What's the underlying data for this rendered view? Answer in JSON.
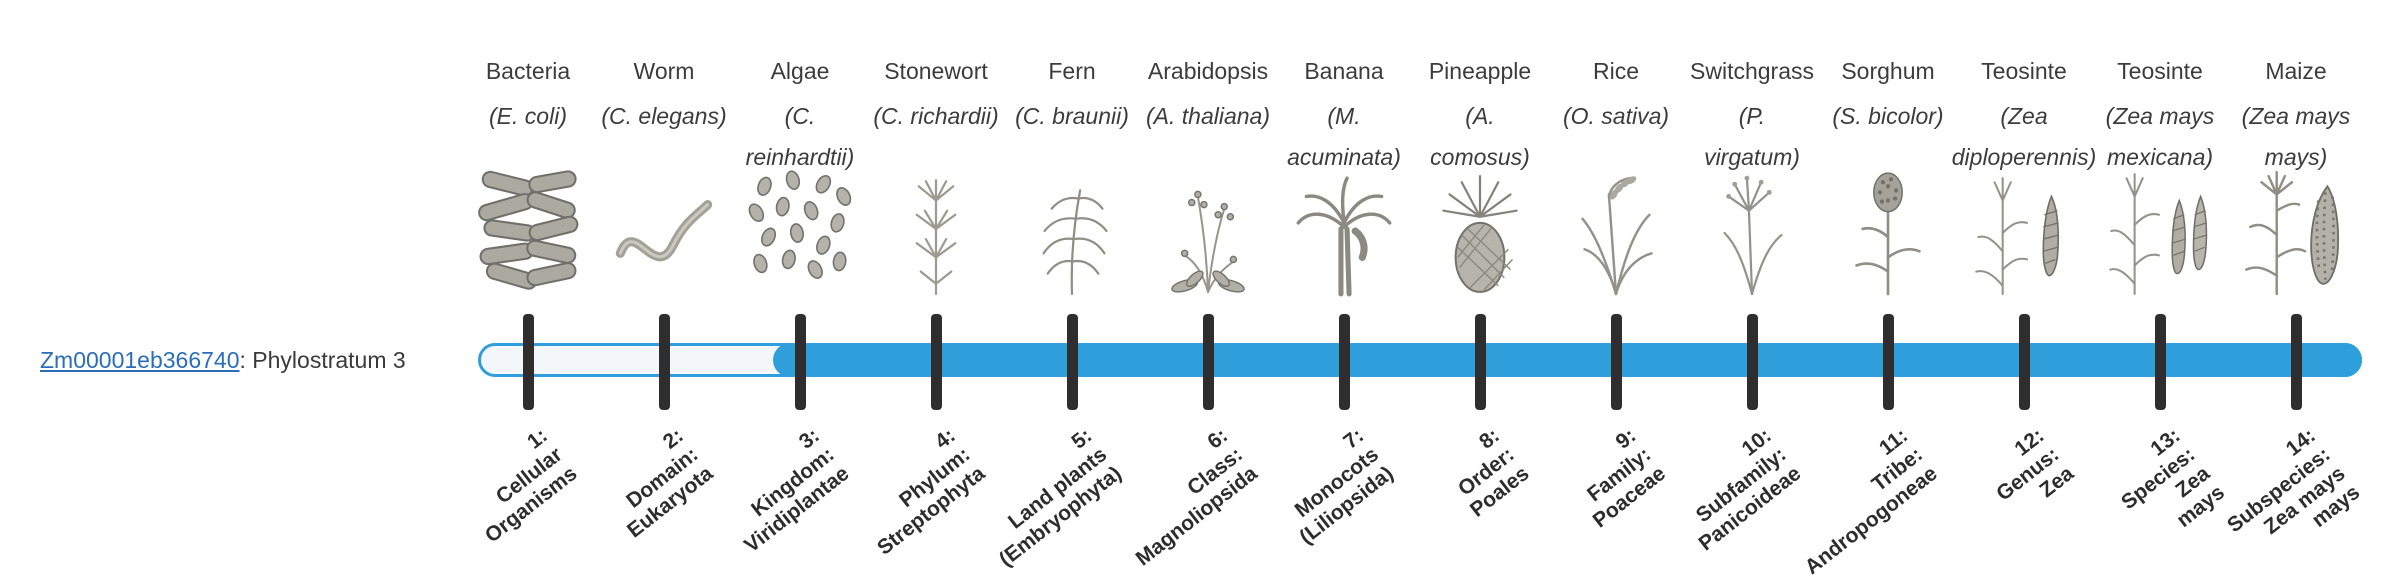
{
  "gene": {
    "id": "Zm00001eb366740",
    "label_suffix": ": Phylostratum 3",
    "phylostratum": 3
  },
  "timeline": {
    "bar": {
      "fill_color": "#2f9fdc",
      "track_color": "#f4f7fa",
      "tick_color": "#2e2e2e"
    },
    "organisms": [
      {
        "name": "Bacteria",
        "latin_lines": [
          "(E. coli)"
        ],
        "icon": "bacteria",
        "rank_lines": [
          "1:",
          "Cellular",
          "Organisms"
        ]
      },
      {
        "name": "Worm",
        "latin_lines": [
          "(C. elegans)"
        ],
        "icon": "worm",
        "rank_lines": [
          "2:",
          "Domain:",
          "Eukaryota"
        ]
      },
      {
        "name": "Algae",
        "latin_lines": [
          "(C.",
          "reinhardtii)"
        ],
        "icon": "algae",
        "rank_lines": [
          "3:",
          "Kingdom:",
          "Viridiplantae"
        ]
      },
      {
        "name": "Stonewort",
        "latin_lines": [
          "(C. richardii)"
        ],
        "icon": "stonewort",
        "rank_lines": [
          "4:",
          "Phylum:",
          "Streptophyta"
        ]
      },
      {
        "name": "Fern",
        "latin_lines": [
          "(C. braunii)"
        ],
        "icon": "fern",
        "rank_lines": [
          "5:",
          "Land plants",
          "(Embryophyta)"
        ]
      },
      {
        "name": "Arabidopsis",
        "latin_lines": [
          "(A. thaliana)"
        ],
        "icon": "arabidopsis",
        "rank_lines": [
          "6:",
          "Class:",
          "Magnoliopsida"
        ]
      },
      {
        "name": "Banana",
        "latin_lines": [
          "(M.",
          "acuminata)"
        ],
        "icon": "banana",
        "rank_lines": [
          "7:",
          "Monocots",
          "(Liliopsida)"
        ]
      },
      {
        "name": "Pineapple",
        "latin_lines": [
          "(A.",
          "comosus)"
        ],
        "icon": "pineapple",
        "rank_lines": [
          "8:",
          "Order:",
          "Poales"
        ]
      },
      {
        "name": "Rice",
        "latin_lines": [
          "(O. sativa)"
        ],
        "icon": "rice",
        "rank_lines": [
          "9:",
          "Family:",
          "Poaceae"
        ]
      },
      {
        "name": "Switchgrass",
        "latin_lines": [
          "(P.",
          "virgatum)"
        ],
        "icon": "switchgrass",
        "rank_lines": [
          "10:",
          "Subfamily:",
          "Panicoideae"
        ]
      },
      {
        "name": "Sorghum",
        "latin_lines": [
          "(S. bicolor)"
        ],
        "icon": "sorghum",
        "rank_lines": [
          "11:",
          "Tribe:",
          "Andropogoneae"
        ]
      },
      {
        "name": "Teosinte",
        "latin_lines": [
          "(Zea",
          "diploperennis)"
        ],
        "icon": "teosinte-diploperennis",
        "rank_lines": [
          "12:",
          "Genus:",
          "Zea"
        ]
      },
      {
        "name": "Teosinte",
        "latin_lines": [
          "(Zea mays",
          "mexicana)"
        ],
        "icon": "teosinte-mexicana",
        "rank_lines": [
          "13:",
          "Species:",
          "Zea",
          "mays"
        ]
      },
      {
        "name": "Maize",
        "latin_lines": [
          "(Zea mays",
          "mays)"
        ],
        "icon": "maize",
        "rank_lines": [
          "14:",
          "Subspecies:",
          "Zea mays",
          "mays"
        ]
      }
    ]
  }
}
